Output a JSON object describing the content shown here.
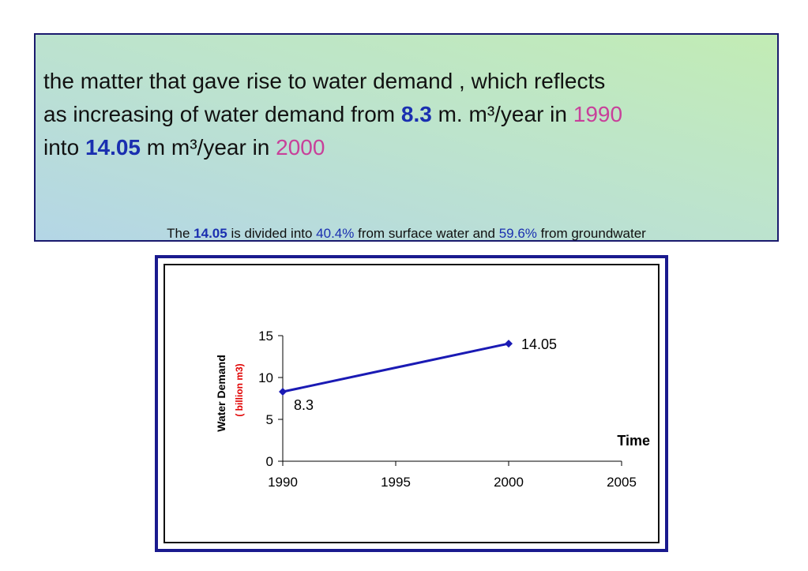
{
  "text_box": {
    "line1": " the matter that gave rise to water demand , which reflects",
    "line2a": "as increasing of water demand from ",
    "val_1990": "8.3",
    "line2b": " m. m³/year in ",
    "year1": "1990",
    "line3a": "into ",
    "val_2000": "14.05",
    "line3b": " m  m³/year in ",
    "year2": "2000",
    "sub_a": "The ",
    "sub_val": "14.05",
    "sub_b": " is divided into ",
    "sub_pct1": "40.4%",
    "sub_c": " from surface water and ",
    "sub_pct2": "59.6%",
    "sub_d": " from groundwater"
  },
  "colors": {
    "series": "#1a1ab4",
    "unit_label": "#e00000",
    "highlight_blue": "#1a2fb0",
    "highlight_pink": "#c8409a"
  },
  "chart_data": {
    "type": "line",
    "series": [
      {
        "x": [
          1990,
          2000
        ],
        "y": [
          8.3,
          14.05
        ],
        "labels": [
          "8.3",
          "14.05"
        ]
      }
    ],
    "xlim": [
      1990,
      2005
    ],
    "ylim": [
      0,
      15
    ],
    "xticks": [
      1990,
      1995,
      2000,
      2005
    ],
    "yticks": [
      0,
      5,
      10,
      15
    ],
    "ylabel": "Water Demand",
    "ylabel_unit": "( billion m3)",
    "xlabel": "Time",
    "grid": false
  }
}
